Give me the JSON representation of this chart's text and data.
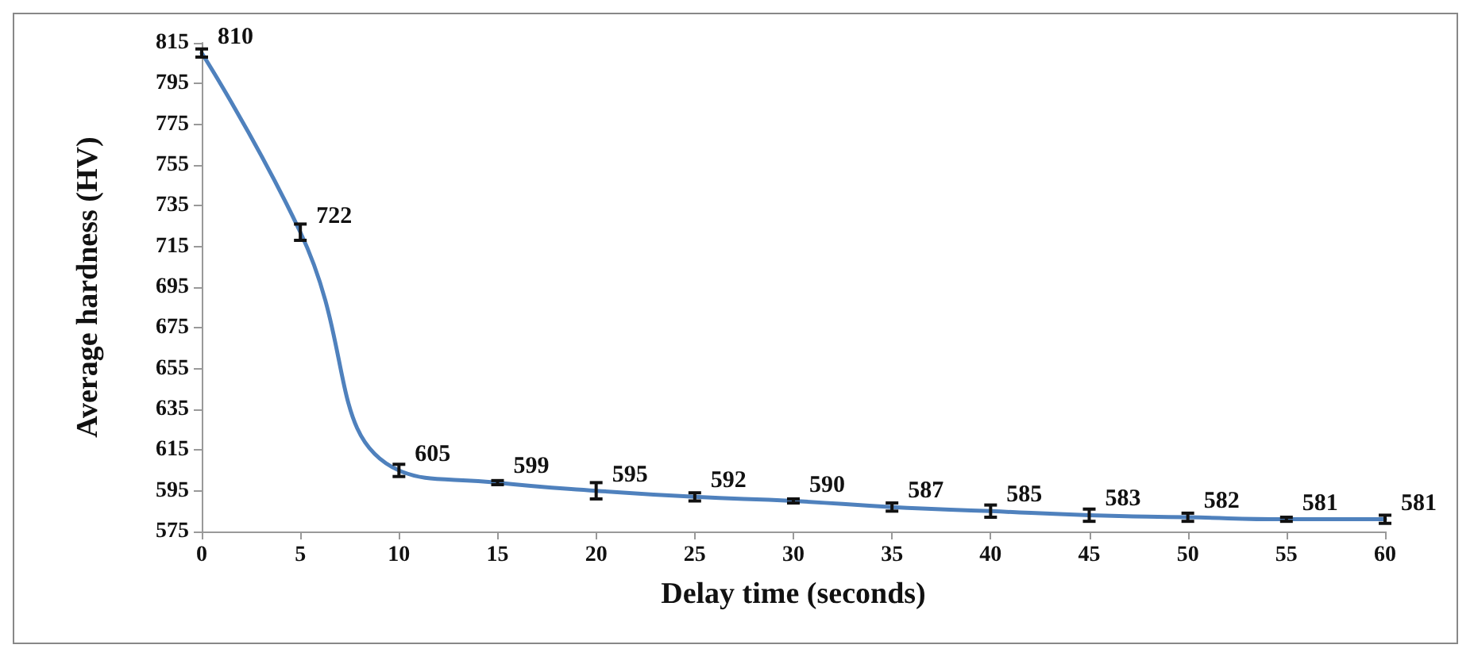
{
  "chart_data": {
    "type": "line",
    "xlabel": "Delay time (seconds)",
    "ylabel": "Average hardness (HV)",
    "x": [
      0,
      5,
      10,
      15,
      20,
      25,
      30,
      35,
      40,
      45,
      50,
      55,
      60
    ],
    "series": [
      {
        "color": "#4f81bd",
        "values": [
          810,
          722,
          605,
          599,
          595,
          592,
          590,
          587,
          585,
          583,
          582,
          581,
          581
        ],
        "errors": [
          2,
          4,
          3,
          1,
          4,
          2,
          1,
          2,
          3,
          3,
          2,
          1,
          2
        ]
      }
    ],
    "xlim": [
      0,
      60
    ],
    "xticks": [
      0,
      5,
      10,
      15,
      20,
      25,
      30,
      35,
      40,
      45,
      50,
      55,
      60
    ],
    "ylim": [
      575,
      815
    ],
    "yticks": [
      575,
      595,
      615,
      635,
      655,
      675,
      695,
      715,
      735,
      755,
      775,
      795,
      815
    ],
    "data_labels": true,
    "grid": false,
    "marker": "none",
    "line_style": "solid"
  }
}
